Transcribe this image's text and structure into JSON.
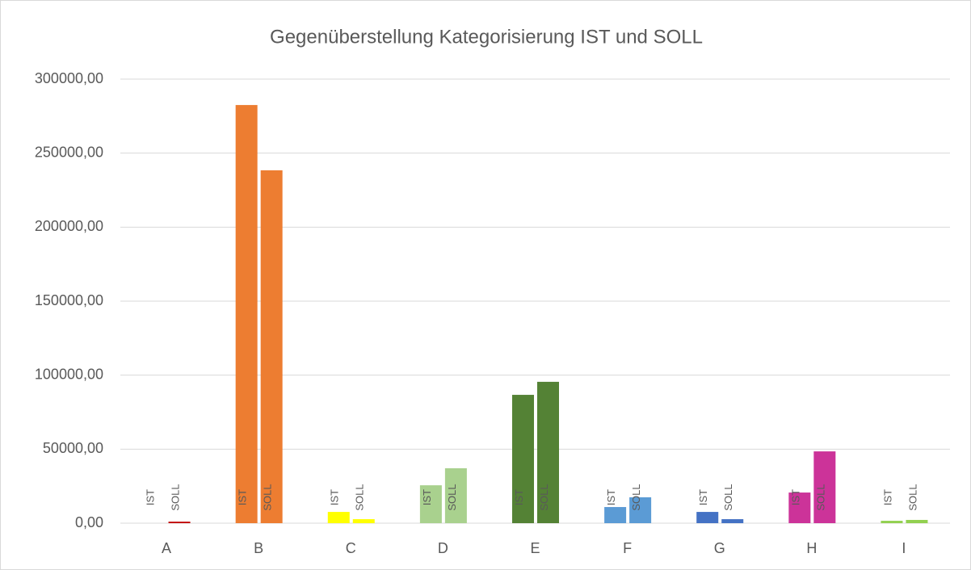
{
  "chart_data": {
    "type": "bar",
    "title": "Gegenüberstellung Kategorisierung IST und SOLL",
    "categories": [
      "A",
      "B",
      "C",
      "D",
      "E",
      "F",
      "G",
      "H",
      "I"
    ],
    "colors": [
      "#c00000",
      "#ed7d31",
      "#ffff00",
      "#a9d18e",
      "#548235",
      "#5b9bd5",
      "#4472c4",
      "#cc3399",
      "#92d050"
    ],
    "series": [
      {
        "name": "IST",
        "values": [
          0,
          282500,
          7600,
          25600,
          86700,
          10900,
          7600,
          20700,
          1600
        ]
      },
      {
        "name": "SOLL",
        "values": [
          1000,
          238400,
          2700,
          37100,
          95500,
          17500,
          2700,
          48500,
          2200
        ]
      }
    ],
    "ylim": [
      0,
      300000
    ],
    "yticks": [
      {
        "value": 0,
        "label": "0,00"
      },
      {
        "value": 50000,
        "label": "50000,00"
      },
      {
        "value": 100000,
        "label": "100000,00"
      },
      {
        "value": 150000,
        "label": "150000,00"
      },
      {
        "value": 200000,
        "label": "200000,00"
      },
      {
        "value": 250000,
        "label": "250000,00"
      },
      {
        "value": 300000,
        "label": "300000,00"
      }
    ],
    "grid": true
  }
}
